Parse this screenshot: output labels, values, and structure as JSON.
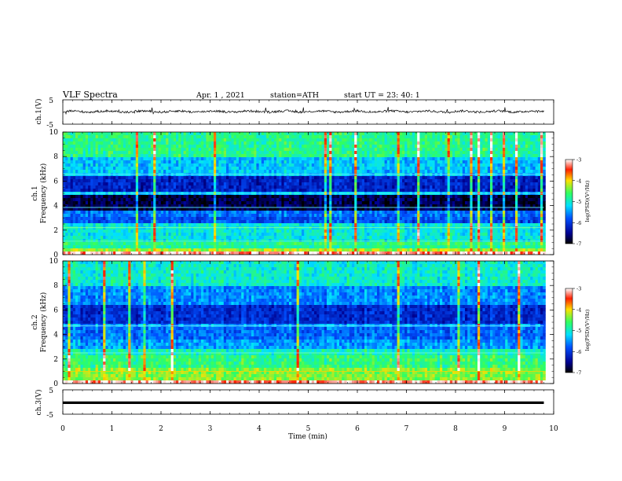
{
  "header": {
    "title": "VLF  Spectra",
    "date": "Apr. 1  , 2021",
    "station": "station=ATH",
    "start_ut": "start  UT  =   23: 40: 1"
  },
  "chart_data": [
    {
      "id": "ch1_waveform",
      "type": "line",
      "ylabel": "ch.1(V)",
      "ylim": [
        -5,
        5
      ],
      "y_ticks": [
        "5",
        "-5"
      ],
      "xlim": [
        0,
        10
      ],
      "baseline": 0.2,
      "color": "#000000"
    },
    {
      "id": "ch1_spectrogram",
      "type": "heatmap",
      "ylabel": "ch.1",
      "ylabel2": "Frequency  (kHz)",
      "ylim": [
        0,
        10
      ],
      "y_ticks": [
        "0",
        "2",
        "4",
        "6",
        "8",
        "10"
      ],
      "xlim": [
        0,
        10
      ],
      "data_end_min": 9.8,
      "colorbar": {
        "label": "log(PSD)(V²/Hz)",
        "range": [
          -7,
          -3
        ],
        "ticks": [
          "-3",
          "-4",
          "-5",
          "-6",
          "-7"
        ]
      }
    },
    {
      "id": "ch2_spectrogram",
      "type": "heatmap",
      "ylabel": "ch.2",
      "ylabel2": "Frequency  (kHz)",
      "ylim": [
        0,
        10
      ],
      "y_ticks": [
        "0",
        "2",
        "4",
        "6",
        "8",
        "10"
      ],
      "xlim": [
        0,
        10
      ],
      "data_end_min": 9.8,
      "colorbar": {
        "label": "log(PSD)(V²/Hz)",
        "range": [
          -7,
          -3
        ],
        "ticks": [
          "-3",
          "-4",
          "-5",
          "-6",
          "-7"
        ]
      }
    },
    {
      "id": "ch3_waveform",
      "type": "line",
      "ylabel": "ch.3(V)",
      "ylim": [
        -5,
        5
      ],
      "y_ticks": [
        "5",
        "-5"
      ],
      "xlim": [
        0,
        10
      ],
      "baseline": -0.3,
      "color": "#000000"
    }
  ],
  "x_axis": {
    "label": "Time  (min)",
    "ticks": [
      "0",
      "1",
      "2",
      "3",
      "4",
      "5",
      "6",
      "7",
      "8",
      "9",
      "10"
    ]
  }
}
